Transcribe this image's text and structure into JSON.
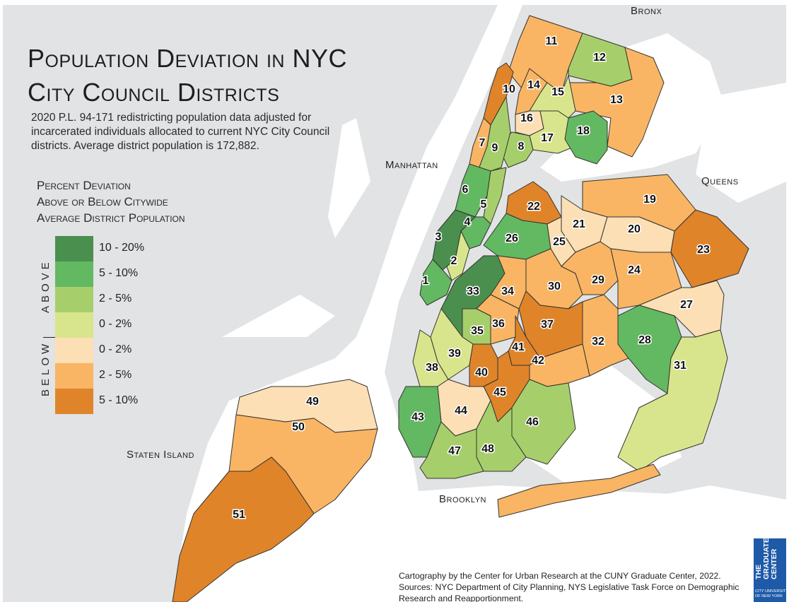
{
  "title": {
    "line1": "Population Deviation in NYC",
    "line2": "City Council Districts"
  },
  "subtitle": "2020 P.L. 94-171 redistricting population data adjusted for incarcerated individuals allocated to current NYC City Council districts. Average district population is 172,882.",
  "legend": {
    "title_line1": "Percent Deviation",
    "title_line2": "Above or Below Citywide",
    "title_line3": "Average District Population",
    "above_label": "ABOVE",
    "below_label": "BELOW",
    "items": [
      {
        "label": "10 - 20%",
        "group": "above",
        "color": "#4a8f4e"
      },
      {
        "label": "5 - 10%",
        "group": "above",
        "color": "#63b862"
      },
      {
        "label": "2 - 5%",
        "group": "above",
        "color": "#a6cf6b"
      },
      {
        "label": "0 - 2%",
        "group": "above",
        "color": "#d9e58c"
      },
      {
        "label": "0 - 2%",
        "group": "below",
        "color": "#fcdfb4"
      },
      {
        "label": "2 - 5%",
        "group": "below",
        "color": "#f9b563"
      },
      {
        "label": "5 - 10%",
        "group": "below",
        "color": "#e0842a"
      }
    ]
  },
  "boroughs": {
    "bronx": "Bronx",
    "manhattan": "Manhattan",
    "queens": "Queens",
    "brooklyn": "Brooklyn",
    "staten_island": "Staten Island"
  },
  "credits": {
    "line1": "Cartography by the Center for Urban Research at the CUNY Graduate Center, 2022.",
    "line2": "Sources: NYC Department of City Planning, NYS Legislative Task Force on Demographic Research and Reapportionment."
  },
  "logo": {
    "main": "THE\nGRADUATE\nCENTER",
    "sub": "CITY UNIVERSITY\nOF NEW YORK"
  },
  "colors": {
    "land_background": "#e1e3e4",
    "water": "#ffffff",
    "border": "#333333"
  },
  "chart_data": {
    "type": "choropleth",
    "title": "Population Deviation in NYC City Council Districts",
    "average_population": 172882,
    "classes": [
      "above 10-20%",
      "above 5-10%",
      "above 2-5%",
      "above 0-2%",
      "below 0-2%",
      "below 2-5%",
      "below 5-10%"
    ],
    "districts": [
      {
        "id": 1,
        "borough": "Manhattan",
        "class": "above 5-10%"
      },
      {
        "id": 2,
        "borough": "Manhattan",
        "class": "above 0-2%"
      },
      {
        "id": 3,
        "borough": "Manhattan",
        "class": "above 10-20%"
      },
      {
        "id": 4,
        "borough": "Manhattan",
        "class": "above 5-10%"
      },
      {
        "id": 5,
        "borough": "Manhattan",
        "class": "above 2-5%"
      },
      {
        "id": 6,
        "borough": "Manhattan",
        "class": "above 5-10%"
      },
      {
        "id": 7,
        "borough": "Manhattan",
        "class": "below 2-5%"
      },
      {
        "id": 8,
        "borough": "Manhattan/Bronx",
        "class": "above 2-5%"
      },
      {
        "id": 9,
        "borough": "Manhattan",
        "class": "above 2-5%"
      },
      {
        "id": 10,
        "borough": "Manhattan",
        "class": "below 5-10%"
      },
      {
        "id": 11,
        "borough": "Bronx",
        "class": "below 2-5%"
      },
      {
        "id": 12,
        "borough": "Bronx",
        "class": "above 2-5%"
      },
      {
        "id": 13,
        "borough": "Bronx",
        "class": "below 2-5%"
      },
      {
        "id": 14,
        "borough": "Bronx",
        "class": "below 2-5%"
      },
      {
        "id": 15,
        "borough": "Bronx",
        "class": "above 0-2%"
      },
      {
        "id": 16,
        "borough": "Bronx",
        "class": "below 0-2%"
      },
      {
        "id": 17,
        "borough": "Bronx",
        "class": "above 0-2%"
      },
      {
        "id": 18,
        "borough": "Bronx",
        "class": "above 5-10%"
      },
      {
        "id": 19,
        "borough": "Queens",
        "class": "below 2-5%"
      },
      {
        "id": 20,
        "borough": "Queens",
        "class": "below 0-2%"
      },
      {
        "id": 21,
        "borough": "Queens",
        "class": "below 0-2%"
      },
      {
        "id": 22,
        "borough": "Queens",
        "class": "below 5-10%"
      },
      {
        "id": 23,
        "borough": "Queens",
        "class": "below 5-10%"
      },
      {
        "id": 24,
        "borough": "Queens",
        "class": "below 2-5%"
      },
      {
        "id": 25,
        "borough": "Queens",
        "class": "below 0-2%"
      },
      {
        "id": 26,
        "borough": "Queens",
        "class": "above 5-10%"
      },
      {
        "id": 27,
        "borough": "Queens",
        "class": "below 0-2%"
      },
      {
        "id": 28,
        "borough": "Queens",
        "class": "above 5-10%"
      },
      {
        "id": 29,
        "borough": "Queens",
        "class": "below 2-5%"
      },
      {
        "id": 30,
        "borough": "Queens",
        "class": "below 2-5%"
      },
      {
        "id": 31,
        "borough": "Queens",
        "class": "above 0-2%"
      },
      {
        "id": 32,
        "borough": "Queens",
        "class": "below 2-5%"
      },
      {
        "id": 33,
        "borough": "Brooklyn",
        "class": "above 10-20%"
      },
      {
        "id": 34,
        "borough": "Brooklyn",
        "class": "below 2-5%"
      },
      {
        "id": 35,
        "borough": "Brooklyn",
        "class": "above 2-5%"
      },
      {
        "id": 36,
        "borough": "Brooklyn",
        "class": "below 2-5%"
      },
      {
        "id": 37,
        "borough": "Brooklyn",
        "class": "below 5-10%"
      },
      {
        "id": 38,
        "borough": "Brooklyn",
        "class": "above 0-2%"
      },
      {
        "id": 39,
        "borough": "Brooklyn",
        "class": "above 0-2%"
      },
      {
        "id": 40,
        "borough": "Brooklyn",
        "class": "below 5-10%"
      },
      {
        "id": 41,
        "borough": "Brooklyn",
        "class": "below 5-10%"
      },
      {
        "id": 42,
        "borough": "Brooklyn",
        "class": "below 2-5%"
      },
      {
        "id": 43,
        "borough": "Brooklyn",
        "class": "above 5-10%"
      },
      {
        "id": 44,
        "borough": "Brooklyn",
        "class": "below 0-2%"
      },
      {
        "id": 45,
        "borough": "Brooklyn",
        "class": "below 5-10%"
      },
      {
        "id": 46,
        "borough": "Brooklyn",
        "class": "above 2-5%"
      },
      {
        "id": 47,
        "borough": "Brooklyn",
        "class": "above 2-5%"
      },
      {
        "id": 48,
        "borough": "Brooklyn",
        "class": "above 2-5%"
      },
      {
        "id": 49,
        "borough": "Staten Island",
        "class": "below 0-2%"
      },
      {
        "id": 50,
        "borough": "Staten Island",
        "class": "below 2-5%"
      },
      {
        "id": 51,
        "borough": "Staten Island",
        "class": "below 5-10%"
      }
    ]
  }
}
